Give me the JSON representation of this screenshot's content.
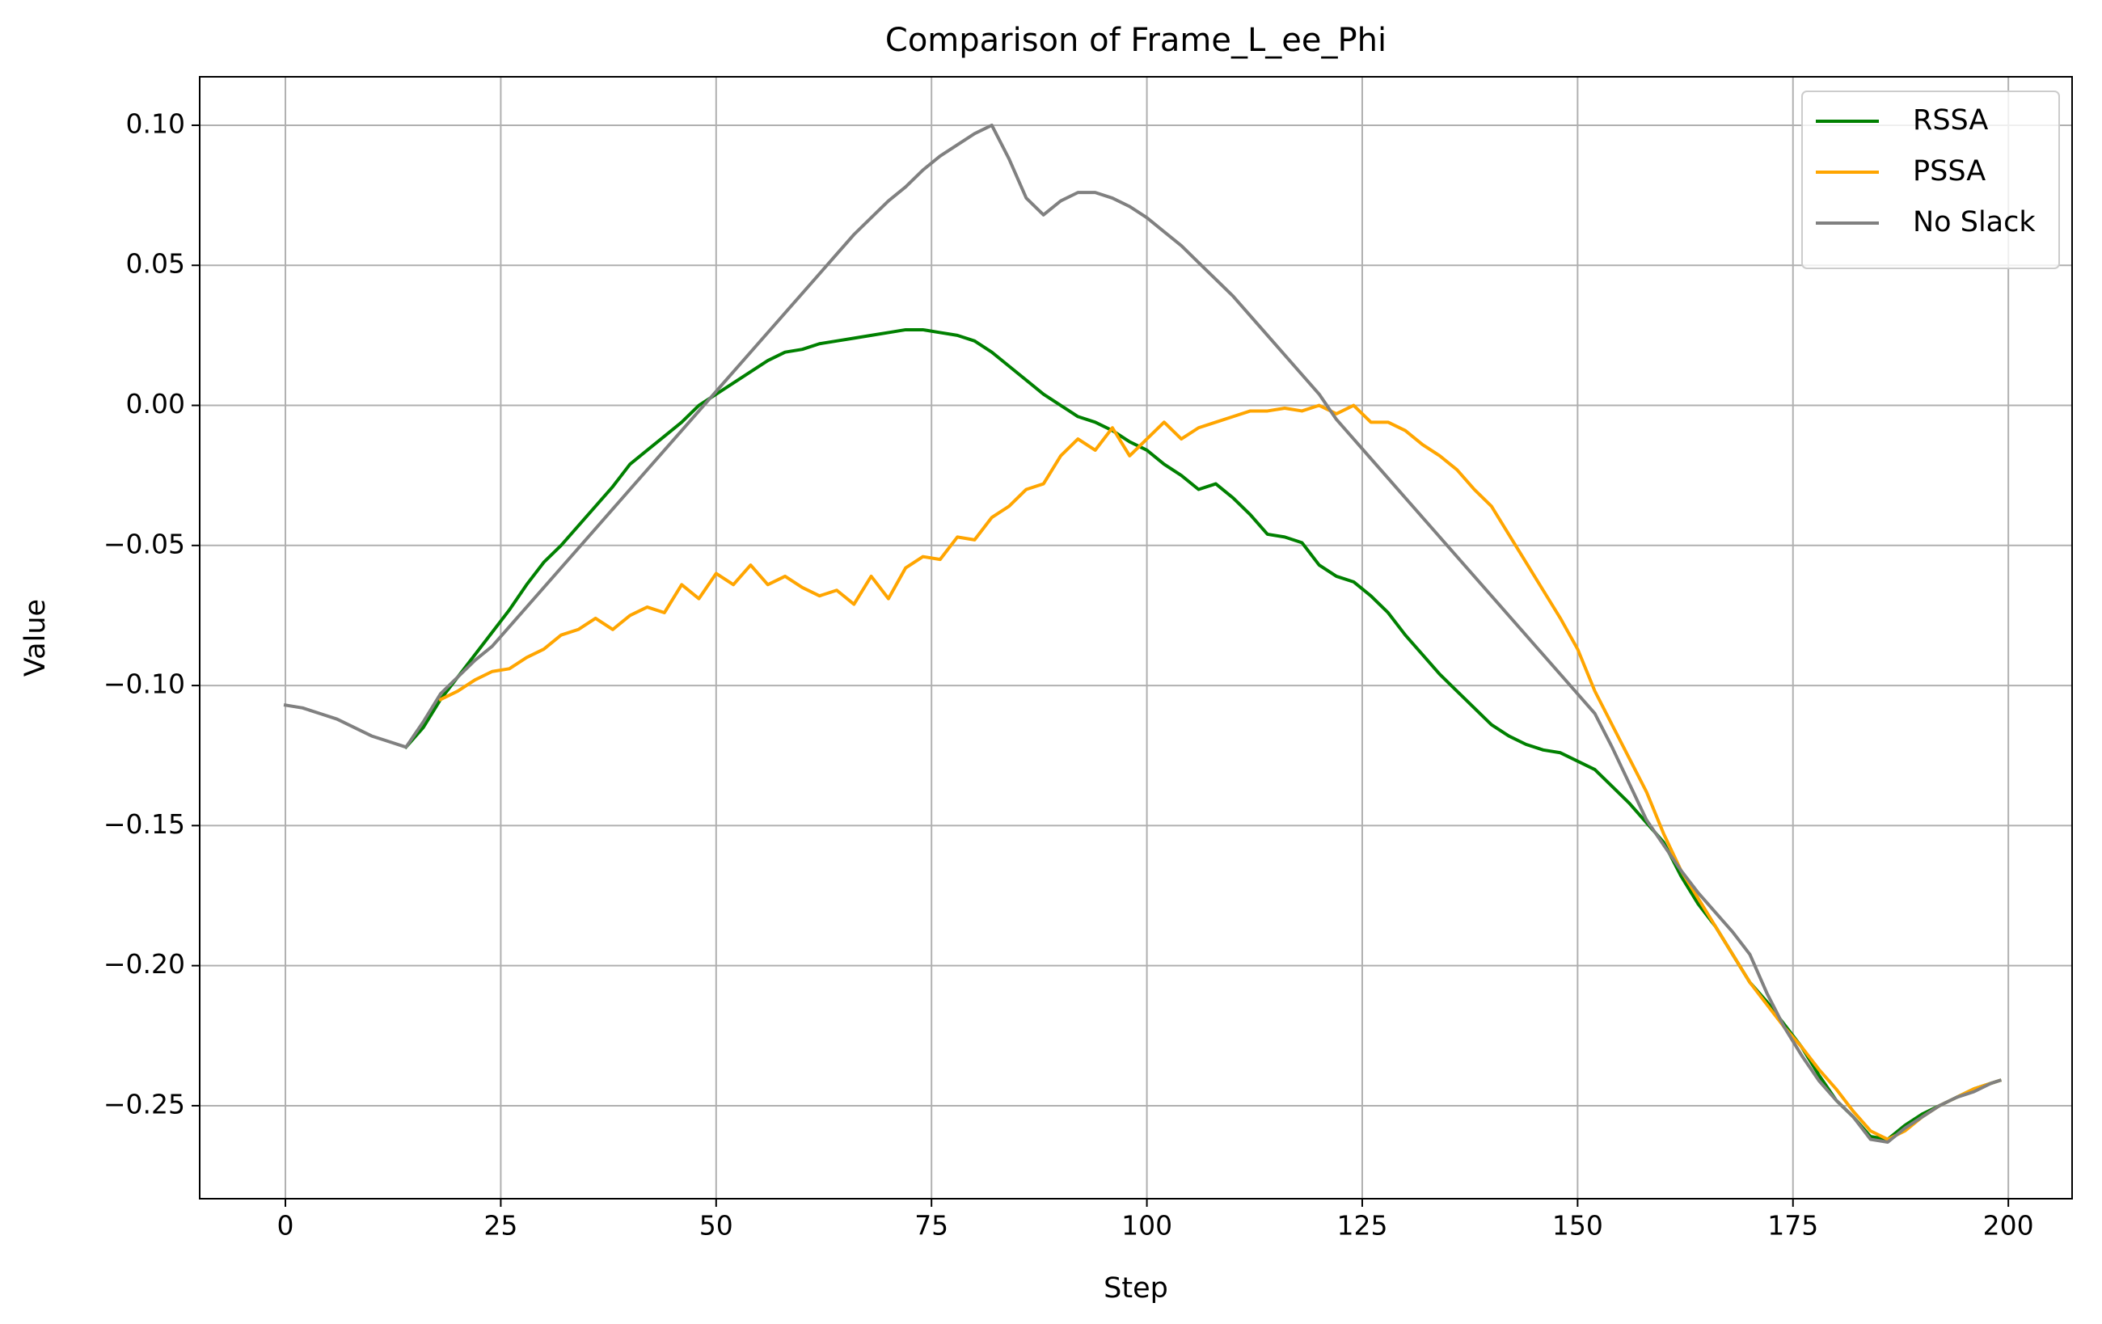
{
  "chart_data": {
    "type": "line",
    "title": "Comparison of Frame_L_ee_Phi",
    "x_label": "Step",
    "y_label": "Value",
    "x": [
      0,
      2,
      4,
      6,
      8,
      10,
      12,
      14,
      16,
      18,
      20,
      22,
      24,
      26,
      28,
      30,
      32,
      34,
      36,
      38,
      40,
      42,
      44,
      46,
      48,
      50,
      52,
      54,
      56,
      58,
      60,
      62,
      64,
      66,
      68,
      70,
      72,
      74,
      76,
      78,
      80,
      82,
      84,
      86,
      88,
      90,
      92,
      94,
      96,
      98,
      100,
      102,
      104,
      106,
      108,
      110,
      112,
      114,
      116,
      118,
      120,
      122,
      124,
      126,
      128,
      130,
      132,
      134,
      136,
      138,
      140,
      142,
      144,
      146,
      148,
      150,
      152,
      154,
      156,
      158,
      160,
      162,
      164,
      166,
      168,
      170,
      172,
      174,
      176,
      178,
      180,
      182,
      184,
      186,
      188,
      190,
      192,
      194,
      196,
      198,
      199
    ],
    "series": [
      {
        "name": "RSSA",
        "color": "green",
        "values": [
          null,
          null,
          null,
          null,
          null,
          null,
          null,
          -0.122,
          -0.115,
          -0.105,
          -0.097,
          -0.089,
          -0.081,
          -0.073,
          -0.064,
          -0.056,
          -0.05,
          -0.043,
          -0.036,
          -0.029,
          -0.021,
          -0.016,
          -0.011,
          -0.006,
          0.0,
          0.004,
          0.008,
          0.012,
          0.016,
          0.019,
          0.02,
          0.022,
          0.023,
          0.024,
          0.025,
          0.026,
          0.027,
          0.027,
          0.026,
          0.025,
          0.023,
          0.019,
          0.014,
          0.009,
          0.004,
          0.0,
          -0.004,
          -0.006,
          -0.009,
          -0.013,
          -0.016,
          -0.021,
          -0.025,
          -0.03,
          -0.028,
          -0.033,
          -0.039,
          -0.046,
          -0.047,
          -0.049,
          -0.057,
          -0.061,
          -0.063,
          -0.068,
          -0.074,
          -0.082,
          -0.089,
          -0.096,
          -0.102,
          -0.108,
          -0.114,
          -0.118,
          -0.121,
          -0.123,
          -0.124,
          -0.127,
          -0.13,
          -0.136,
          -0.142,
          -0.149,
          -0.156,
          -0.168,
          -0.178,
          -0.186,
          -0.196,
          -0.206,
          -0.213,
          -0.221,
          -0.229,
          -0.239,
          -0.248,
          -0.254,
          -0.261,
          -0.262,
          -0.257,
          -0.253,
          -0.25,
          -0.247,
          -0.244,
          -0.242,
          -0.241
        ]
      },
      {
        "name": "PSSA",
        "color": "orange",
        "values": [
          null,
          null,
          null,
          null,
          null,
          null,
          null,
          null,
          null,
          -0.105,
          -0.102,
          -0.098,
          -0.095,
          -0.094,
          -0.09,
          -0.087,
          -0.082,
          -0.08,
          -0.076,
          -0.08,
          -0.075,
          -0.072,
          -0.074,
          -0.064,
          -0.069,
          -0.06,
          -0.064,
          -0.057,
          -0.064,
          -0.061,
          -0.065,
          -0.068,
          -0.066,
          -0.071,
          -0.061,
          -0.069,
          -0.058,
          -0.054,
          -0.055,
          -0.047,
          -0.048,
          -0.04,
          -0.036,
          -0.03,
          -0.028,
          -0.018,
          -0.012,
          -0.016,
          -0.008,
          -0.018,
          -0.012,
          -0.006,
          -0.012,
          -0.008,
          -0.006,
          -0.004,
          -0.002,
          -0.002,
          -0.001,
          -0.002,
          0.0,
          -0.003,
          0.0,
          -0.006,
          -0.006,
          -0.009,
          -0.014,
          -0.018,
          -0.023,
          -0.03,
          -0.036,
          -0.046,
          -0.056,
          -0.066,
          -0.076,
          -0.087,
          -0.102,
          -0.114,
          -0.126,
          -0.138,
          -0.153,
          -0.166,
          -0.176,
          -0.186,
          -0.196,
          -0.206,
          -0.214,
          -0.222,
          -0.229,
          -0.237,
          -0.244,
          -0.252,
          -0.259,
          -0.262,
          -0.259,
          -0.254,
          -0.25,
          -0.247,
          -0.244,
          -0.242,
          -0.241
        ]
      },
      {
        "name": "No Slack",
        "color": "gray",
        "values": [
          -0.107,
          -0.108,
          -0.11,
          -0.112,
          -0.115,
          -0.118,
          -0.12,
          -0.122,
          -0.113,
          -0.103,
          -0.097,
          -0.091,
          -0.086,
          -0.079,
          -0.072,
          -0.065,
          -0.058,
          -0.051,
          -0.044,
          -0.037,
          -0.03,
          -0.023,
          -0.016,
          -0.009,
          -0.002,
          0.005,
          0.012,
          0.019,
          0.026,
          0.033,
          0.04,
          0.047,
          0.054,
          0.061,
          0.067,
          0.073,
          0.078,
          0.084,
          0.089,
          0.093,
          0.097,
          0.1,
          0.088,
          0.074,
          0.068,
          0.073,
          0.076,
          0.076,
          0.074,
          0.071,
          0.067,
          0.062,
          0.057,
          0.051,
          0.045,
          0.039,
          0.032,
          0.025,
          0.018,
          0.011,
          0.004,
          -0.005,
          -0.012,
          -0.019,
          -0.026,
          -0.033,
          -0.04,
          -0.047,
          -0.054,
          -0.061,
          -0.068,
          -0.075,
          -0.082,
          -0.089,
          -0.096,
          -0.103,
          -0.11,
          -0.122,
          -0.135,
          -0.148,
          -0.157,
          -0.166,
          -0.174,
          -0.181,
          -0.188,
          -0.196,
          -0.21,
          -0.222,
          -0.232,
          -0.241,
          -0.248,
          -0.254,
          -0.262,
          -0.263,
          -0.258,
          -0.254,
          -0.25,
          -0.247,
          -0.245,
          -0.242,
          -0.241
        ]
      }
    ],
    "xlim": [
      -9.95,
      207.4
    ],
    "ylim": [
      -0.2832,
      0.1173
    ],
    "xticks": [
      0,
      25,
      50,
      75,
      100,
      125,
      150,
      175,
      200
    ],
    "yticks": [
      {
        "value": -0.25,
        "label": "−0.25"
      },
      {
        "value": -0.2,
        "label": "−0.20"
      },
      {
        "value": -0.15,
        "label": "−0.15"
      },
      {
        "value": -0.1,
        "label": "−0.10"
      },
      {
        "value": -0.05,
        "label": "−0.05"
      },
      {
        "value": 0,
        "label": "0.00"
      },
      {
        "value": 0.05,
        "label": "0.05"
      },
      {
        "value": 0.1,
        "label": "0.10"
      }
    ],
    "grid": true,
    "legend": "upper right"
  }
}
